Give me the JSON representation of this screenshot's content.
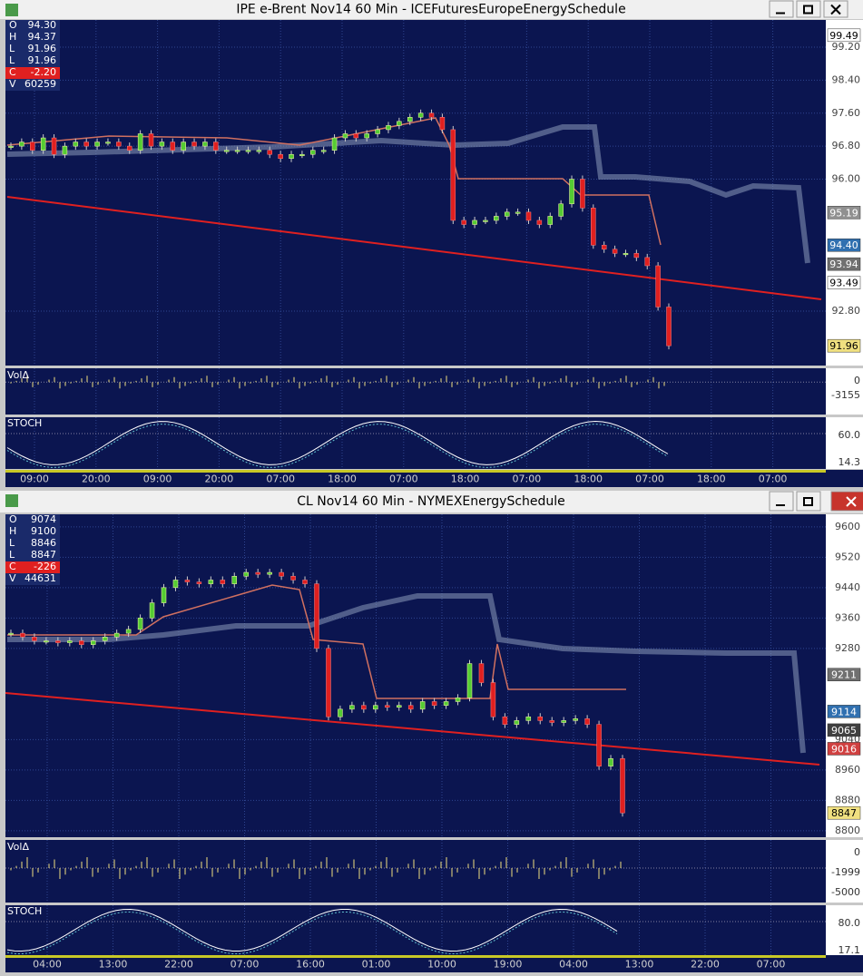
{
  "windows": [
    {
      "title": "IPE e-Brent Nov14 60 Min - ICEFuturesEuropeEnergySchedule",
      "ohlc": [
        {
          "key": "O",
          "text": "94.30"
        },
        {
          "key": "H",
          "text": "94.37"
        },
        {
          "key": "L",
          "text": "91.96"
        },
        {
          "key": "L",
          "text": "91.96"
        },
        {
          "key": "C",
          "text": "-2.20"
        },
        {
          "key": "V",
          "text": "60259"
        }
      ],
      "ylim": [
        91.48,
        99.86
      ],
      "price_ticks": [
        {
          "value": 99.2,
          "label": "99.20"
        },
        {
          "value": 98.4,
          "label": "98.40"
        },
        {
          "value": 97.6,
          "label": "97.60"
        },
        {
          "value": 96.8,
          "label": "96.80"
        },
        {
          "value": 96,
          "label": "96.00"
        },
        {
          "value": 92.8,
          "label": "92.80"
        }
      ],
      "price_tags": [
        {
          "value": 99.49,
          "label": "99.49"
        },
        {
          "value": 95.19,
          "label": "95.19"
        },
        {
          "value": 94.4,
          "label": "94.40"
        },
        {
          "value": 93.94,
          "label": "93.94"
        },
        {
          "value": 93.49,
          "label": "93.49"
        },
        {
          "value": 91.96,
          "label": "91.96"
        }
      ],
      "closes": [
        96.8,
        96.9,
        96.7,
        97.0,
        96.6,
        96.8,
        96.9,
        96.8,
        96.9,
        96.9,
        96.8,
        96.7,
        97.1,
        96.8,
        96.9,
        96.7,
        96.9,
        96.8,
        96.9,
        96.7,
        96.7,
        96.7,
        96.7,
        96.7,
        96.6,
        96.5,
        96.6,
        96.6,
        96.7,
        96.7,
        97.0,
        97.1,
        97.0,
        97.1,
        97.2,
        97.3,
        97.4,
        97.5,
        97.6,
        97.5,
        97.2,
        95.0,
        94.9,
        95.0,
        95.0,
        95.1,
        95.2,
        95.2,
        95.0,
        94.9,
        95.1,
        95.4,
        96.0,
        95.3,
        94.4,
        94.3,
        94.2,
        94.2,
        94.1,
        93.9,
        92.9,
        91.96
      ],
      "vol_label": "VolΔ",
      "vol_ticks": [
        "0",
        "-3155"
      ],
      "stoch_label": "STOCH",
      "stoch_ticks": [
        "60.0",
        "14.3"
      ],
      "times": [
        "09:00",
        "20:00",
        "09:00",
        "20:00",
        "07:00",
        "18:00",
        "07:00",
        "18:00",
        "07:00",
        "18:00",
        "07:00",
        "18:00",
        "07:00"
      ]
    },
    {
      "title": "CL Nov14 60 Min - NYMEXEnergySchedule",
      "ohlc": [
        {
          "key": "O",
          "text": "9074"
        },
        {
          "key": "H",
          "text": "9100"
        },
        {
          "key": "L",
          "text": "8846"
        },
        {
          "key": "L",
          "text": "8847"
        },
        {
          "key": "C",
          "text": "-226"
        },
        {
          "key": "V",
          "text": "44631"
        }
      ],
      "ylim": [
        8783,
        9633
      ],
      "price_ticks": [
        {
          "value": 9600,
          "label": "9600"
        },
        {
          "value": 9520,
          "label": "9520"
        },
        {
          "value": 9440,
          "label": "9440"
        },
        {
          "value": 9360,
          "label": "9360"
        },
        {
          "value": 9280,
          "label": "9280"
        },
        {
          "value": 9040,
          "label": "9040"
        },
        {
          "value": 8960,
          "label": "8960"
        },
        {
          "value": 8880,
          "label": "8880"
        },
        {
          "value": 8800,
          "label": "8800"
        }
      ],
      "price_tags": [
        {
          "value": 9211,
          "label": "9211"
        },
        {
          "value": 9114,
          "label": "9114"
        },
        {
          "value": 9065,
          "label": "9065"
        },
        {
          "value": 9016,
          "label": "9016"
        },
        {
          "value": 8847,
          "label": "8847"
        }
      ],
      "closes": [
        9320,
        9310,
        9300,
        9300,
        9295,
        9300,
        9290,
        9300,
        9310,
        9320,
        9330,
        9360,
        9400,
        9440,
        9460,
        9455,
        9450,
        9460,
        9450,
        9470,
        9480,
        9475,
        9480,
        9470,
        9460,
        9450,
        9280,
        9100,
        9120,
        9130,
        9120,
        9130,
        9125,
        9130,
        9120,
        9140,
        9130,
        9140,
        9150,
        9240,
        9190,
        9100,
        9080,
        9090,
        9100,
        9090,
        9085,
        9090,
        9095,
        9080,
        8970,
        8990,
        8847
      ],
      "vol_label": "VolΔ",
      "vol_ticks": [
        "0",
        "-1999",
        "-5000"
      ],
      "stoch_label": "STOCH",
      "stoch_ticks": [
        "80.0",
        "17.1"
      ],
      "times": [
        "04:00",
        "13:00",
        "22:00",
        "07:00",
        "16:00",
        "01:00",
        "10:00",
        "19:00",
        "04:00",
        "13:00",
        "22:00",
        "07:00"
      ]
    }
  ]
}
